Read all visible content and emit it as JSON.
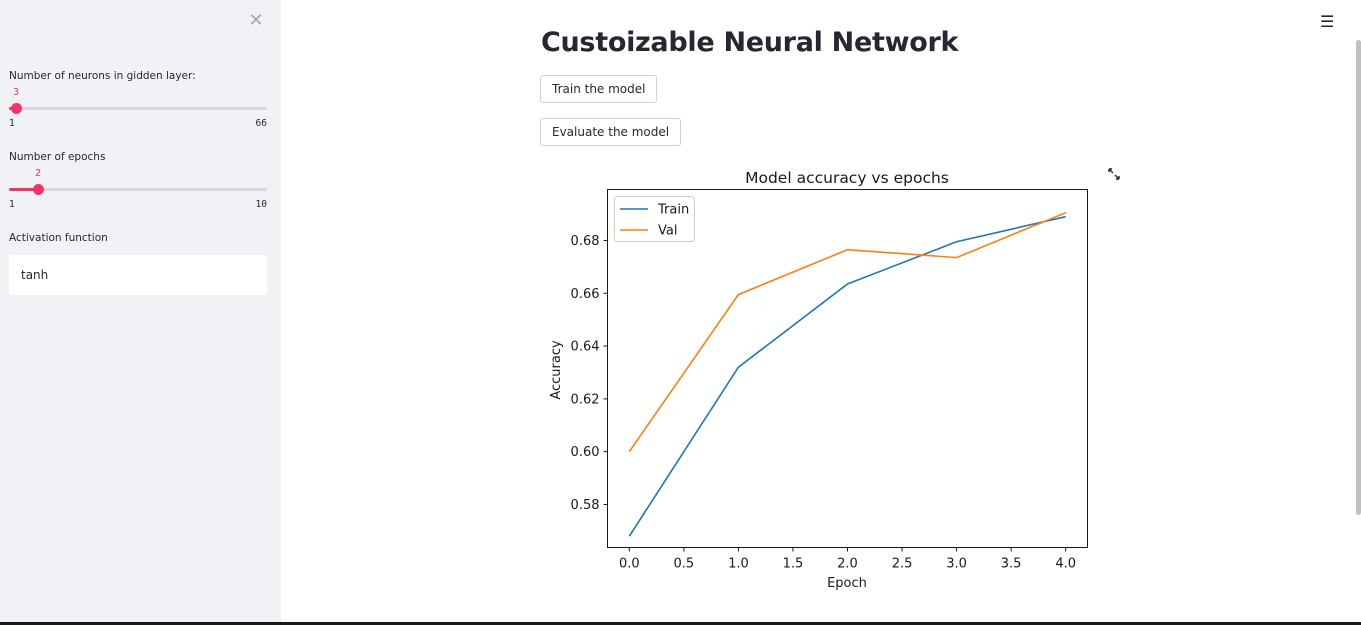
{
  "sidebar": {
    "close_icon": "close-icon",
    "neurons": {
      "label": "Number of neurons in gidden layer:",
      "value": "3",
      "min": "1",
      "max": "66"
    },
    "epochs": {
      "label": "Number of epochs",
      "value": "2",
      "min": "1",
      "max": "10"
    },
    "activation": {
      "label": "Activation function",
      "value": "tanh"
    }
  },
  "main": {
    "title": "Custoizable Neural Network",
    "train_button": "Train the model",
    "evaluate_button": "Evaluate the model",
    "menu_icon": "hamburger-menu-icon",
    "expand_icon": "fullscreen-expand-icon"
  },
  "colors": {
    "accent": "#f63366",
    "sidebar_bg": "#f0f2f6",
    "train_line": "#1f77b4",
    "val_line": "#ff7f0e"
  },
  "chart_data": {
    "type": "line",
    "title": "Model accuracy vs epochs",
    "xlabel": "Epoch",
    "ylabel": "Accuracy",
    "x": [
      0,
      1,
      2,
      3,
      4
    ],
    "series": [
      {
        "name": "Train",
        "values": [
          0.568,
          0.632,
          0.6635,
          0.6795,
          0.689
        ]
      },
      {
        "name": "Val",
        "values": [
          0.6,
          0.6595,
          0.6765,
          0.6735,
          0.6905
        ]
      }
    ],
    "xlim": [
      -0.2,
      4.2
    ],
    "ylim": [
      0.5637,
      0.6993
    ],
    "xticks": [
      "0.0",
      "0.5",
      "1.0",
      "1.5",
      "2.0",
      "2.5",
      "3.0",
      "3.5",
      "4.0"
    ],
    "yticks": [
      "0.58",
      "0.60",
      "0.62",
      "0.64",
      "0.66",
      "0.68"
    ],
    "legend_position": "upper-left",
    "grid": false
  }
}
